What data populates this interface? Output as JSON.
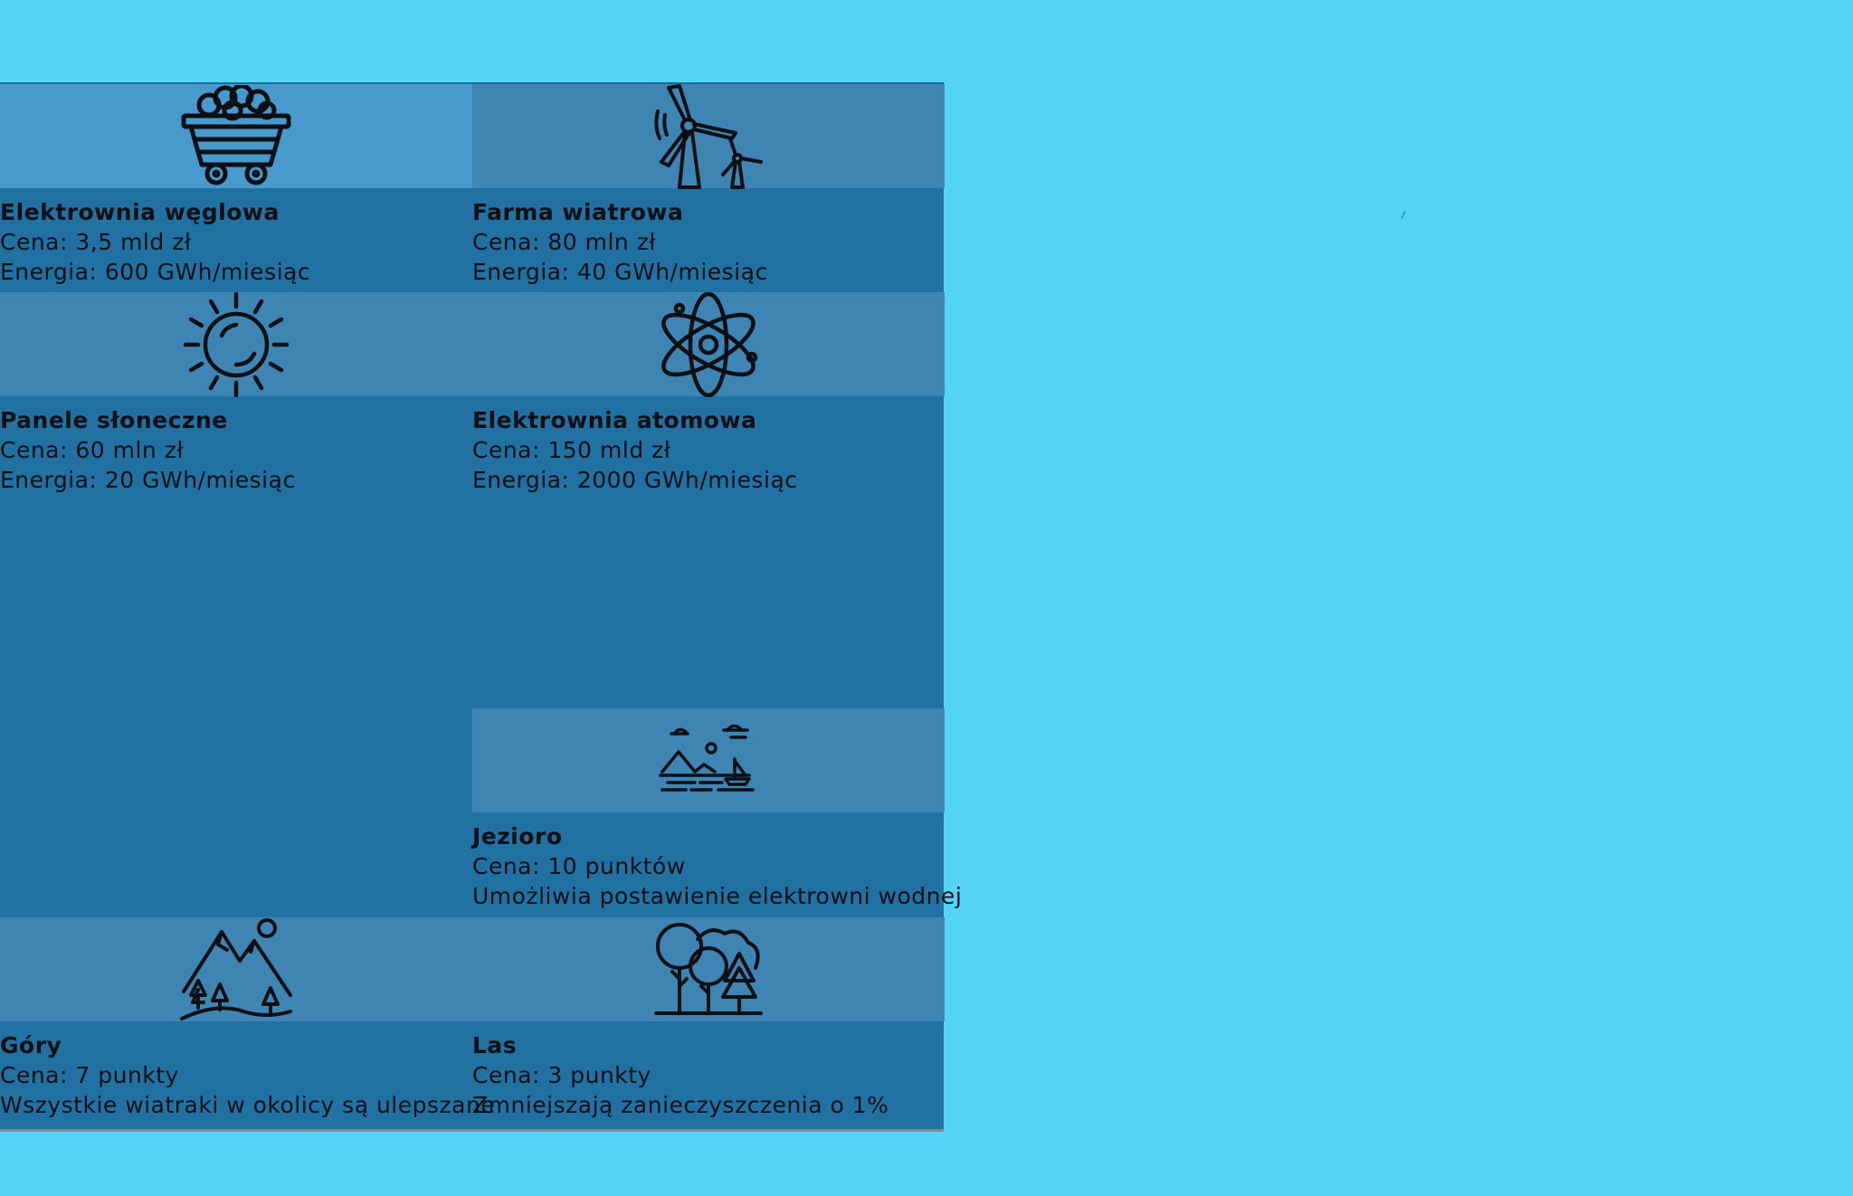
{
  "colors": {
    "page_background": "#55d4f8",
    "panel_background": "#2271a3",
    "icon_tile": "#3e85b4",
    "icon_tile_highlight": "#4899cc",
    "text": "#0c0f14"
  },
  "cards": [
    {
      "icon": "coal-cart-icon",
      "name": "Elektrownia węglowa",
      "cost": "Cena: 3,5 mld zł",
      "effect": "Energia: 600 GWh/miesiąc"
    },
    {
      "icon": "wind-turbine-icon",
      "name": "Farma wiatrowa",
      "cost": "Cena: 80 mln zł",
      "effect": "Energia: 40 GWh/miesiąc"
    },
    {
      "icon": "sun-icon",
      "name": "Panele słoneczne",
      "cost": "Cena: 60 mln zł",
      "effect": "Energia: 20 GWh/miesiąc"
    },
    {
      "icon": "atom-icon",
      "name": "Elektrownia atomowa",
      "cost": "Cena: 150 mld zł",
      "effect": "Energia: 2000 GWh/miesiąc"
    },
    {
      "icon": "lake-icon",
      "name": "Jezioro",
      "cost": "Cena: 10 punktów",
      "effect": "Umożliwia postawienie elektrowni wodnej"
    },
    {
      "icon": "mountains-icon",
      "name": "Góry",
      "cost": "Cena: 7 punkty",
      "effect": "Wszystkie wiatraki w okolicy są ulepszane"
    },
    {
      "icon": "forest-icon",
      "name": "Las",
      "cost": "Cena: 3 punkty",
      "effect": "Zmniejszają zanieczyszczenia o 1%"
    }
  ]
}
